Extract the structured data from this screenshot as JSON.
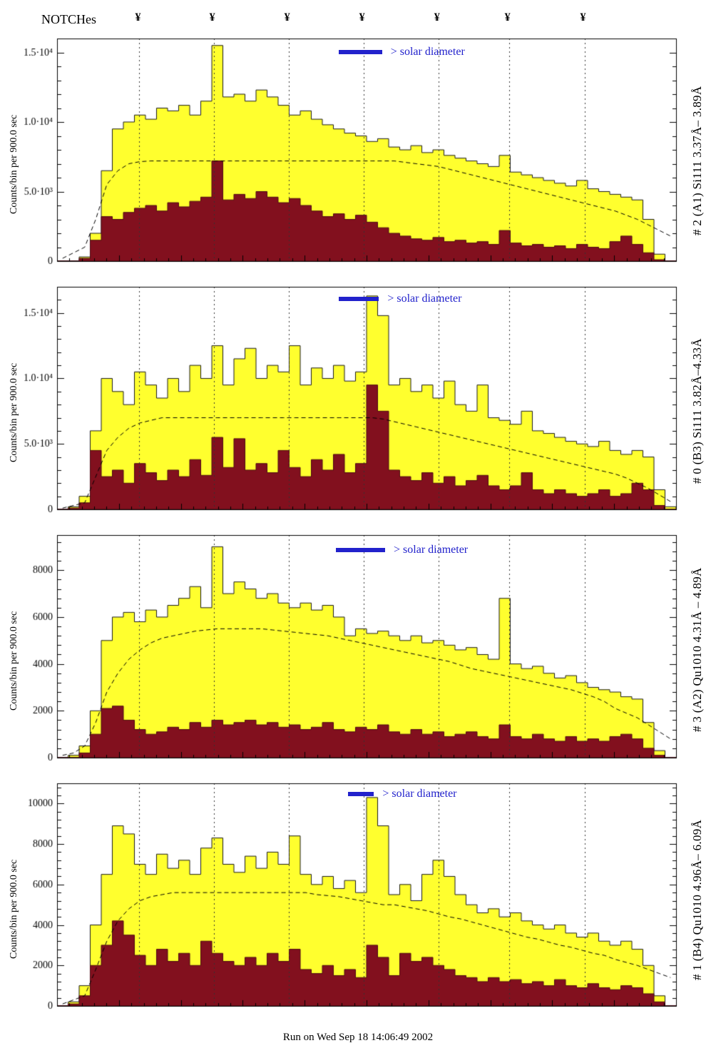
{
  "header": {
    "title": "NOTCHes",
    "notch_symbol": "¥"
  },
  "footer": {
    "run_label": "Run on Wed Sep 18 14:06:49 2002"
  },
  "colors": {
    "histogram_fill": "#ffff2e",
    "histogram_outline": "#1a1a1a",
    "background_fill": "#82101e",
    "background_outline": "#4d0912",
    "envelope": "#000000",
    "accent_blue": "#2222cc",
    "axis": "#000000",
    "notch_line": "#333333"
  },
  "notch_fractions": [
    0.133,
    0.253,
    0.374,
    0.495,
    0.616,
    0.73,
    0.852
  ],
  "chart_data": [
    {
      "type": "histogram",
      "right_label": "# 2 (A1) Si111  3.37Å– 3.89Å",
      "ylabel": "Counts/bin per  900.0 sec",
      "legend": "> solar diameter",
      "xlabel": "",
      "grid": false,
      "ylim": [
        0,
        16000
      ],
      "yticks": [
        {
          "v": 0,
          "label": "0"
        },
        {
          "v": 5000,
          "label": "5.0·10³"
        },
        {
          "v": 10000,
          "label": "1.0·10⁴"
        },
        {
          "v": 15000,
          "label": "1.5·10⁴"
        }
      ],
      "legend_pos": {
        "bar": [
          0.455,
          0.525
        ],
        "y": 16
      },
      "series": [
        {
          "name": "total-counts",
          "role": "fill-yellow",
          "values": [
            0,
            0,
            300,
            2000,
            6500,
            9500,
            10000,
            10500,
            10200,
            11000,
            10800,
            11200,
            10500,
            11500,
            15500,
            11800,
            12000,
            11500,
            12300,
            11800,
            11200,
            10500,
            10800,
            10200,
            9800,
            9500,
            9200,
            9000,
            8600,
            8800,
            8200,
            8000,
            8300,
            7800,
            8000,
            7600,
            7400,
            7200,
            7000,
            6800,
            7600,
            6400,
            6200,
            6000,
            5800,
            5600,
            5400,
            5800,
            5200,
            5000,
            4800,
            4600,
            4400,
            3000,
            500,
            0
          ]
        },
        {
          "name": "background-counts",
          "role": "fill-red",
          "values": [
            0,
            0,
            200,
            1500,
            3200,
            3000,
            3500,
            3800,
            4000,
            3600,
            4200,
            3900,
            4300,
            4600,
            7200,
            4400,
            4800,
            4500,
            5000,
            4600,
            4200,
            4500,
            4000,
            3600,
            3200,
            3400,
            3000,
            3300,
            2800,
            2400,
            2000,
            1800,
            1600,
            1500,
            1700,
            1400,
            1500,
            1300,
            1400,
            1200,
            2200,
            1300,
            1100,
            1200,
            1000,
            1100,
            900,
            1200,
            1000,
            900,
            1400,
            1800,
            1200,
            600,
            100,
            0
          ]
        },
        {
          "name": "attenuation-envelope",
          "role": "dashed-line",
          "values": [
            200,
            600,
            1000,
            3000,
            5500,
            6500,
            7000,
            7150,
            7200,
            7200,
            7200,
            7200,
            7200,
            7200,
            7200,
            7200,
            7200,
            7200,
            7200,
            7200,
            7200,
            7200,
            7200,
            7200,
            7200,
            7200,
            7200,
            7200,
            7200,
            7200,
            7200,
            7100,
            7000,
            6900,
            6800,
            6600,
            6400,
            6200,
            6000,
            5800,
            5600,
            5400,
            5200,
            5000,
            4800,
            4600,
            4400,
            4200,
            4000,
            3800,
            3600,
            3300,
            3000,
            2600,
            2200,
            1800
          ]
        }
      ]
    },
    {
      "type": "histogram",
      "right_label": "# 0 (B3) Si111  3.82Å–4.33Å",
      "ylabel": "Counts/bin per  900.0 sec",
      "legend": "> solar diameter",
      "xlabel": "",
      "grid": false,
      "ylim": [
        0,
        17000
      ],
      "yticks": [
        {
          "v": 0,
          "label": "0"
        },
        {
          "v": 5000,
          "label": "5.0·10³"
        },
        {
          "v": 10000,
          "label": "1.0·10⁴"
        },
        {
          "v": 15000,
          "label": "1.5·10⁴"
        }
      ],
      "legend_pos": {
        "bar": [
          0.455,
          0.52
        ],
        "y": 14
      },
      "series": [
        {
          "name": "total-counts",
          "role": "fill-yellow",
          "values": [
            0,
            200,
            1000,
            6000,
            10000,
            9000,
            8000,
            10500,
            9500,
            8500,
            10000,
            9000,
            11000,
            10000,
            12500,
            9500,
            11500,
            12300,
            10000,
            11000,
            10500,
            12500,
            9500,
            10800,
            10000,
            11000,
            9800,
            10500,
            16300,
            14800,
            9500,
            10000,
            9000,
            9500,
            8500,
            9800,
            8000,
            7500,
            9500,
            7000,
            6800,
            6500,
            7500,
            6000,
            5800,
            5500,
            5200,
            5000,
            4800,
            5200,
            4500,
            4200,
            4500,
            4000,
            1500,
            200
          ]
        },
        {
          "name": "background-counts",
          "role": "fill-red",
          "values": [
            0,
            100,
            500,
            4500,
            2500,
            3000,
            2000,
            3500,
            2800,
            2200,
            3000,
            2500,
            3800,
            2600,
            5500,
            3200,
            5400,
            3000,
            3500,
            2800,
            4500,
            3200,
            2500,
            3800,
            3000,
            4200,
            2800,
            3500,
            9500,
            7500,
            3000,
            2500,
            2200,
            2800,
            2000,
            2500,
            1800,
            2200,
            2600,
            1800,
            1500,
            1800,
            2800,
            1500,
            1200,
            1500,
            1200,
            1000,
            1200,
            1500,
            1000,
            1200,
            2000,
            1500,
            300,
            0
          ]
        },
        {
          "name": "attenuation-envelope",
          "role": "dashed-line",
          "values": [
            100,
            300,
            500,
            2500,
            4500,
            5500,
            6200,
            6600,
            6800,
            7000,
            7000,
            7000,
            7000,
            7000,
            7000,
            7000,
            7000,
            7000,
            7000,
            7000,
            7000,
            7000,
            7000,
            7000,
            7000,
            7000,
            7000,
            7000,
            7000,
            6900,
            6700,
            6500,
            6300,
            6100,
            5900,
            5700,
            5500,
            5300,
            5100,
            4900,
            4700,
            4500,
            4300,
            4100,
            3900,
            3700,
            3500,
            3300,
            3100,
            2900,
            2700,
            2400,
            2000,
            1600,
            1100,
            600
          ]
        }
      ]
    },
    {
      "type": "histogram",
      "right_label": "# 3 (A2) Qu1010  4.31Å – 4.89Å",
      "ylabel": "Counts/bin per  900.0 sec",
      "legend": "> solar diameter",
      "xlabel": "",
      "grid": false,
      "ylim": [
        0,
        9500
      ],
      "yticks": [
        {
          "v": 0,
          "label": "0"
        },
        {
          "v": 2000,
          "label": "2000"
        },
        {
          "v": 4000,
          "label": "4000"
        },
        {
          "v": 6000,
          "label": "6000"
        },
        {
          "v": 8000,
          "label": "8000"
        }
      ],
      "legend_pos": {
        "bar": [
          0.45,
          0.53
        ],
        "y": 18
      },
      "series": [
        {
          "name": "total-counts",
          "role": "fill-yellow",
          "values": [
            0,
            100,
            500,
            2000,
            5000,
            6000,
            6200,
            5800,
            6300,
            6000,
            6500,
            6800,
            7300,
            6400,
            9000,
            7000,
            7500,
            7200,
            6800,
            7000,
            6600,
            6400,
            6600,
            6300,
            6500,
            6000,
            5200,
            5500,
            5300,
            5400,
            5200,
            5000,
            5200,
            4900,
            5000,
            4800,
            4600,
            4700,
            4400,
            4200,
            6800,
            4000,
            3800,
            3900,
            3600,
            3400,
            3500,
            3200,
            3000,
            2900,
            2800,
            2600,
            2500,
            1500,
            300,
            0
          ]
        },
        {
          "name": "background-counts",
          "role": "fill-red",
          "values": [
            0,
            0,
            200,
            1000,
            2100,
            2200,
            1600,
            1200,
            1000,
            1100,
            1300,
            1200,
            1500,
            1300,
            1600,
            1400,
            1500,
            1600,
            1400,
            1500,
            1300,
            1400,
            1200,
            1300,
            1500,
            1200,
            1100,
            1300,
            1200,
            1400,
            1100,
            1000,
            1200,
            1000,
            1100,
            900,
            1000,
            1100,
            900,
            800,
            1400,
            900,
            800,
            1000,
            800,
            700,
            900,
            700,
            800,
            700,
            900,
            1000,
            800,
            400,
            100,
            0
          ]
        },
        {
          "name": "attenuation-envelope",
          "role": "dashed-line",
          "values": [
            100,
            200,
            500,
            1500,
            2800,
            3600,
            4200,
            4600,
            4900,
            5100,
            5200,
            5300,
            5400,
            5450,
            5500,
            5500,
            5500,
            5500,
            5500,
            5450,
            5400,
            5350,
            5300,
            5250,
            5200,
            5100,
            5000,
            4900,
            4800,
            4700,
            4600,
            4500,
            4400,
            4300,
            4200,
            4100,
            3950,
            3800,
            3700,
            3600,
            3500,
            3400,
            3300,
            3200,
            3100,
            3000,
            2900,
            2750,
            2600,
            2400,
            2100,
            1900,
            1700,
            1400,
            1100,
            800
          ]
        }
      ]
    },
    {
      "type": "histogram",
      "right_label": "# 1 (B4) Qu1010  4.96Å– 6.09Å",
      "ylabel": "Counts/bin per  900.0 sec",
      "legend": "> solar diameter",
      "xlabel": "",
      "grid": false,
      "ylim": [
        0,
        11000
      ],
      "yticks": [
        {
          "v": 0,
          "label": "0"
        },
        {
          "v": 2000,
          "label": "2000"
        },
        {
          "v": 4000,
          "label": "4000"
        },
        {
          "v": 6000,
          "label": "6000"
        },
        {
          "v": 8000,
          "label": "8000"
        },
        {
          "v": 10000,
          "label": "10000"
        }
      ],
      "legend_pos": {
        "bar": [
          0.47,
          0.512
        ],
        "y": 12
      },
      "series": [
        {
          "name": "total-counts",
          "role": "fill-yellow",
          "values": [
            0,
            200,
            1000,
            4000,
            6500,
            8900,
            8500,
            7000,
            6500,
            7500,
            6800,
            7200,
            6500,
            7800,
            8300,
            7000,
            6600,
            7400,
            6800,
            7600,
            7000,
            8400,
            6500,
            6000,
            6400,
            5800,
            6200,
            5600,
            10300,
            8900,
            5500,
            6000,
            5200,
            6500,
            7200,
            6400,
            5500,
            5000,
            4600,
            4800,
            4400,
            4600,
            4200,
            4000,
            3800,
            4000,
            3600,
            3400,
            3600,
            3200,
            3000,
            3200,
            2800,
            2000,
            500,
            0
          ]
        },
        {
          "name": "background-counts",
          "role": "fill-red",
          "values": [
            0,
            100,
            500,
            2000,
            3000,
            4200,
            3500,
            2500,
            2000,
            2800,
            2200,
            2600,
            2000,
            3200,
            2600,
            2200,
            2000,
            2400,
            2000,
            2600,
            2200,
            2800,
            1800,
            1600,
            2000,
            1500,
            1800,
            1400,
            3000,
            2400,
            1500,
            2600,
            2200,
            2400,
            2000,
            1800,
            1500,
            1400,
            1200,
            1400,
            1200,
            1300,
            1100,
            1200,
            1000,
            1300,
            1000,
            900,
            1100,
            900,
            800,
            1000,
            900,
            600,
            200,
            0
          ]
        },
        {
          "name": "attenuation-envelope",
          "role": "dashed-line",
          "values": [
            100,
            300,
            500,
            1800,
            3200,
            4200,
            4800,
            5200,
            5400,
            5500,
            5600,
            5600,
            5600,
            5600,
            5600,
            5600,
            5600,
            5600,
            5600,
            5600,
            5600,
            5600,
            5600,
            5500,
            5450,
            5400,
            5300,
            5200,
            5100,
            5000,
            5000,
            4900,
            4800,
            4700,
            4550,
            4400,
            4300,
            4150,
            4000,
            3850,
            3700,
            3550,
            3400,
            3300,
            3150,
            3000,
            2900,
            2750,
            2600,
            2500,
            2300,
            2150,
            2000,
            1800,
            1600,
            1400
          ]
        }
      ]
    }
  ]
}
